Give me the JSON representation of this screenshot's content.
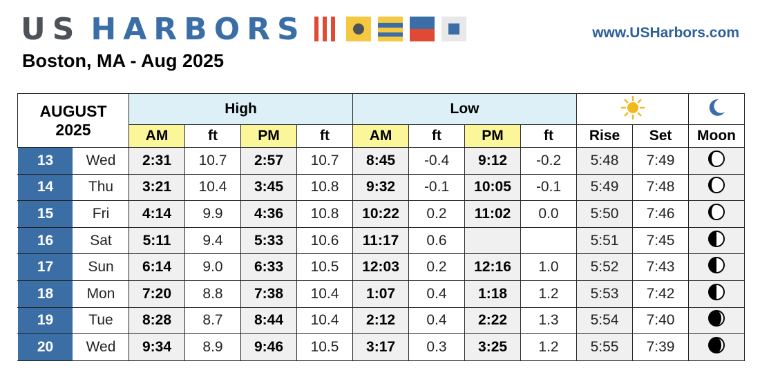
{
  "header": {
    "brand_us": "US",
    "brand_harbors": "HARBORS",
    "website": "www.USHarbors.com",
    "title": "Boston, MA - Aug 2025"
  },
  "flag_icons": [
    "nautical-flag-r",
    "nautical-flag-k",
    "nautical-flag-o",
    "nautical-flag-e",
    "nautical-flag-w"
  ],
  "table": {
    "month": "AUGUST",
    "year": "2025",
    "high_label": "High",
    "low_label": "Low",
    "sun_icon": "sun-icon",
    "moon_icon": "crescent-moon-icon",
    "subheaders": [
      "AM",
      "ft",
      "PM",
      "ft",
      "AM",
      "ft",
      "PM",
      "ft",
      "Rise",
      "Set",
      "Moon"
    ],
    "rows": [
      {
        "day": "13",
        "weekday": "Wed",
        "high_am": "2:31",
        "high_am_ft": "10.7",
        "high_pm": "2:57",
        "high_pm_ft": "10.7",
        "low_am": "8:45",
        "low_am_ft": "-0.4",
        "low_pm": "9:12",
        "low_pm_ft": "-0.2",
        "rise": "5:48",
        "set": "7:49",
        "moon_phase": "waning-gibbous"
      },
      {
        "day": "14",
        "weekday": "Thu",
        "high_am": "3:21",
        "high_am_ft": "10.4",
        "high_pm": "3:45",
        "high_pm_ft": "10.8",
        "low_am": "9:32",
        "low_am_ft": "-0.1",
        "low_pm": "10:05",
        "low_pm_ft": "-0.1",
        "rise": "5:49",
        "set": "7:48",
        "moon_phase": "waning-gibbous"
      },
      {
        "day": "15",
        "weekday": "Fri",
        "high_am": "4:14",
        "high_am_ft": "9.9",
        "high_pm": "4:36",
        "high_pm_ft": "10.8",
        "low_am": "10:22",
        "low_am_ft": "0.2",
        "low_pm": "11:02",
        "low_pm_ft": "0.0",
        "rise": "5:50",
        "set": "7:46",
        "moon_phase": "waning-gibbous"
      },
      {
        "day": "16",
        "weekday": "Sat",
        "high_am": "5:11",
        "high_am_ft": "9.4",
        "high_pm": "5:33",
        "high_pm_ft": "10.6",
        "low_am": "11:17",
        "low_am_ft": "0.6",
        "low_pm": "",
        "low_pm_ft": "",
        "rise": "5:51",
        "set": "7:45",
        "moon_phase": "last-quarter"
      },
      {
        "day": "17",
        "weekday": "Sun",
        "high_am": "6:14",
        "high_am_ft": "9.0",
        "high_pm": "6:33",
        "high_pm_ft": "10.5",
        "low_am": "12:03",
        "low_am_ft": "0.2",
        "low_pm": "12:16",
        "low_pm_ft": "1.0",
        "rise": "5:52",
        "set": "7:43",
        "moon_phase": "last-quarter"
      },
      {
        "day": "18",
        "weekday": "Mon",
        "high_am": "7:20",
        "high_am_ft": "8.8",
        "high_pm": "7:38",
        "high_pm_ft": "10.4",
        "low_am": "1:07",
        "low_am_ft": "0.4",
        "low_pm": "1:18",
        "low_pm_ft": "1.2",
        "rise": "5:53",
        "set": "7:42",
        "moon_phase": "last-quarter"
      },
      {
        "day": "19",
        "weekday": "Tue",
        "high_am": "8:28",
        "high_am_ft": "8.7",
        "high_pm": "8:44",
        "high_pm_ft": "10.4",
        "low_am": "2:12",
        "low_am_ft": "0.4",
        "low_pm": "2:22",
        "low_pm_ft": "1.3",
        "rise": "5:54",
        "set": "7:40",
        "moon_phase": "waning-crescent"
      },
      {
        "day": "20",
        "weekday": "Wed",
        "high_am": "9:34",
        "high_am_ft": "8.9",
        "high_pm": "9:46",
        "high_pm_ft": "10.5",
        "low_am": "3:17",
        "low_am_ft": "0.3",
        "low_pm": "3:25",
        "low_pm_ft": "1.2",
        "rise": "5:55",
        "set": "7:39",
        "moon_phase": "waning-crescent"
      }
    ]
  }
}
